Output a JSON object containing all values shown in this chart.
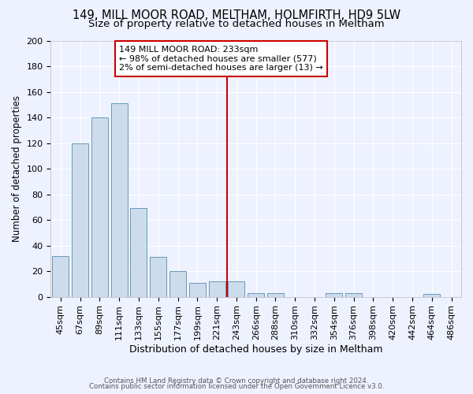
{
  "title1": "149, MILL MOOR ROAD, MELTHAM, HOLMFIRTH, HD9 5LW",
  "title2": "Size of property relative to detached houses in Meltham",
  "xlabel": "Distribution of detached houses by size in Meltham",
  "ylabel": "Number of detached properties",
  "footnote1": "Contains HM Land Registry data © Crown copyright and database right 2024.",
  "footnote2": "Contains public sector information licensed under the Open Government Licence v3.0.",
  "bin_labels": [
    "45sqm",
    "67sqm",
    "89sqm",
    "111sqm",
    "133sqm",
    "155sqm",
    "177sqm",
    "199sqm",
    "221sqm",
    "243sqm",
    "266sqm",
    "288sqm",
    "310sqm",
    "332sqm",
    "354sqm",
    "376sqm",
    "398sqm",
    "420sqm",
    "442sqm",
    "464sqm",
    "486sqm"
  ],
  "bar_values": [
    32,
    120,
    140,
    151,
    69,
    31,
    20,
    11,
    12,
    12,
    3,
    3,
    0,
    0,
    3,
    3,
    0,
    0,
    0,
    2,
    0
  ],
  "bar_color": "#cddcec",
  "bar_edgecolor": "#6699bb",
  "red_line_index": 9,
  "annotation_text": "149 MILL MOOR ROAD: 233sqm\n← 98% of detached houses are smaller (577)\n2% of semi-detached houses are larger (13) →",
  "annotation_box_color": "#ffffff",
  "annotation_box_edgecolor": "#cc0000",
  "ylim": [
    0,
    200
  ],
  "yticks": [
    0,
    20,
    40,
    60,
    80,
    100,
    120,
    140,
    160,
    180,
    200
  ],
  "bg_color": "#eef2ff",
  "grid_color": "#ffffff",
  "title1_fontsize": 10.5,
  "title2_fontsize": 9.5,
  "xlabel_fontsize": 9,
  "ylabel_fontsize": 8.5,
  "tick_fontsize": 8,
  "annot_fontsize": 8
}
